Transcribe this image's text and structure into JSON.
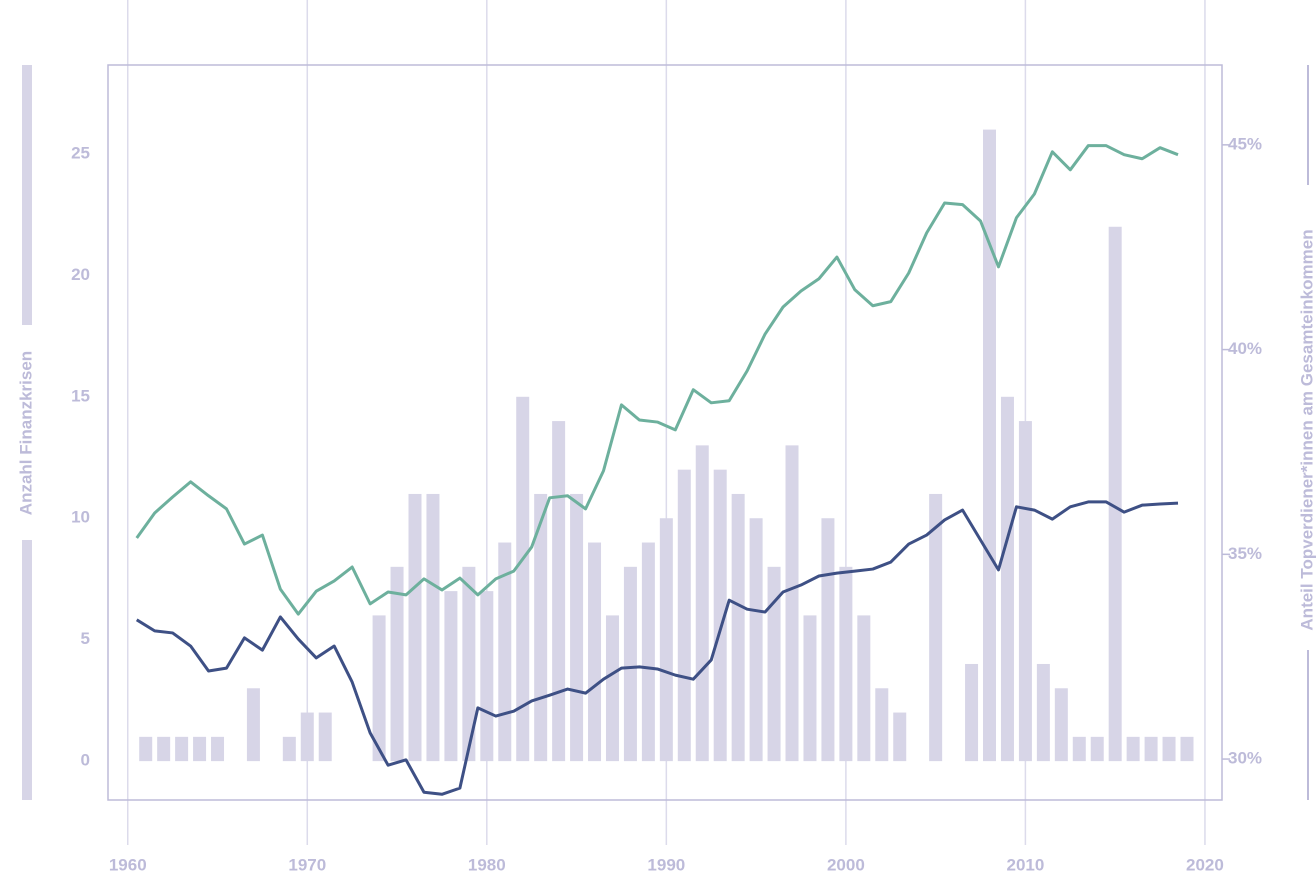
{
  "chart_data": {
    "type": "bar",
    "y_label": "Anzahl Finanzkrisen",
    "y2_label": "Anteil Topverdiener*innen am Gesamteinkommen",
    "xlim": [
      1958.9,
      2020.95
    ],
    "xticks": [
      1960,
      1970,
      1980,
      1990,
      2000,
      2010,
      2020
    ],
    "ylim": [
      -1.6,
      28.66
    ],
    "yticks": [
      0,
      5,
      10,
      15,
      20,
      25
    ],
    "y2lim": [
      29,
      46.95
    ],
    "y2ticks": [
      {
        "value": 30,
        "label": "30%"
      },
      {
        "value": 35,
        "label": "35%"
      },
      {
        "value": 40,
        "label": "40%"
      },
      {
        "value": 45,
        "label": "45%"
      }
    ],
    "grid": true,
    "series": [
      {
        "type": "bar",
        "color": "#d7d5e7",
        "x": [
          1961,
          1962,
          1963,
          1964,
          1965,
          1966,
          1967,
          1968,
          1969,
          1970,
          1971,
          1972,
          1973,
          1974,
          1975,
          1976,
          1977,
          1978,
          1979,
          1980,
          1981,
          1982,
          1983,
          1984,
          1985,
          1986,
          1987,
          1988,
          1989,
          1990,
          1991,
          1992,
          1993,
          1994,
          1995,
          1996,
          1997,
          1998,
          1999,
          2000,
          2001,
          2002,
          2003,
          2004,
          2005,
          2006,
          2007,
          2008,
          2009,
          2010,
          2011,
          2012,
          2013,
          2014,
          2015,
          2016,
          2017,
          2018,
          2019
        ],
        "values": [
          1,
          1,
          1,
          1,
          1,
          0,
          3,
          0,
          1,
          2,
          2,
          0,
          0,
          6,
          8,
          11,
          11,
          7,
          8,
          7,
          9,
          15,
          11,
          14,
          11,
          9,
          6,
          8,
          9,
          10,
          12,
          13,
          12,
          11,
          10,
          8,
          13,
          6,
          10,
          8,
          6,
          3,
          2,
          0,
          11,
          0,
          4,
          26,
          15,
          14,
          4,
          3,
          1,
          1,
          22,
          1,
          1,
          1,
          1
        ]
      },
      {
        "type": "line",
        "axis": "y2",
        "color": "#6db09d",
        "x": [
          1960.5,
          1961.5,
          1962.5,
          1963.5,
          1964.5,
          1965.5,
          1966.5,
          1967.5,
          1968.5,
          1969.5,
          1970.5,
          1971.5,
          1972.5,
          1973.5,
          1974.5,
          1975.5,
          1976.5,
          1977.5,
          1978.5,
          1979.5,
          1980.5,
          1981.5,
          1982.5,
          1983.5,
          1984.5,
          1985.5,
          1986.5,
          1987.5,
          1988.5,
          1989.5,
          1990.5,
          1991.5,
          1992.5,
          1993.5,
          1994.5,
          1995.5,
          1996.5,
          1997.5,
          1998.5,
          1999.5,
          2000.5,
          2001.5,
          2002.5,
          2003.5,
          2004.5,
          2005.5,
          2006.5,
          2007.5,
          2008.5,
          2009.5,
          2010.5,
          2011.5,
          2012.5,
          2013.5,
          2014.5,
          2015.5,
          2016.5,
          2017.5,
          2018.5
        ],
        "values": [
          35.4,
          36.01,
          36.4,
          36.77,
          36.43,
          36.11,
          35.25,
          35.47,
          34.15,
          33.54,
          34.1,
          34.35,
          34.69,
          33.79,
          34.08,
          34.01,
          34.4,
          34.13,
          34.42,
          34.01,
          34.4,
          34.59,
          35.18,
          36.38,
          36.43,
          36.11,
          37.04,
          38.65,
          38.28,
          38.23,
          38.04,
          39.02,
          38.7,
          38.75,
          39.48,
          40.38,
          41.04,
          41.43,
          41.73,
          42.26,
          41.46,
          41.07,
          41.17,
          41.87,
          42.85,
          43.58,
          43.54,
          43.14,
          42.02,
          43.22,
          43.8,
          44.83,
          44.39,
          44.98,
          44.98,
          44.76,
          44.66,
          44.93,
          44.76
        ]
      },
      {
        "type": "line",
        "axis": "y2",
        "color": "#3e5085",
        "x": [
          1960.5,
          1961.5,
          1962.5,
          1963.5,
          1964.5,
          1965.5,
          1966.5,
          1967.5,
          1968.5,
          1969.5,
          1970.5,
          1971.5,
          1972.5,
          1973.5,
          1974.5,
          1975.5,
          1976.5,
          1977.5,
          1978.5,
          1979.5,
          1980.5,
          1981.5,
          1982.5,
          1983.5,
          1984.5,
          1985.5,
          1986.5,
          1987.5,
          1988.5,
          1989.5,
          1990.5,
          1991.5,
          1992.5,
          1993.5,
          1994.5,
          1995.5,
          1996.5,
          1997.5,
          1998.5,
          1999.5,
          2000.5,
          2001.5,
          2002.5,
          2003.5,
          2004.5,
          2005.5,
          2006.5,
          2007.5,
          2008.5,
          2009.5,
          2010.5,
          2011.5,
          2012.5,
          2013.5,
          2014.5,
          2015.5,
          2016.5,
          2017.5,
          2018.5
        ],
        "values": [
          33.4,
          33.13,
          33.08,
          32.76,
          32.15,
          32.22,
          32.96,
          32.66,
          33.47,
          32.93,
          32.47,
          32.76,
          31.88,
          30.64,
          29.85,
          29.98,
          29.19,
          29.14,
          29.29,
          31.25,
          31.05,
          31.17,
          31.42,
          31.56,
          31.71,
          31.61,
          31.95,
          32.22,
          32.25,
          32.2,
          32.05,
          31.95,
          32.42,
          33.88,
          33.66,
          33.59,
          34.08,
          34.25,
          34.47,
          34.54,
          34.59,
          34.64,
          34.81,
          35.25,
          35.47,
          35.84,
          36.08,
          35.35,
          34.62,
          36.16,
          36.08,
          35.86,
          36.16,
          36.28,
          36.28,
          36.03,
          36.2,
          36.23,
          36.25
        ]
      }
    ]
  }
}
